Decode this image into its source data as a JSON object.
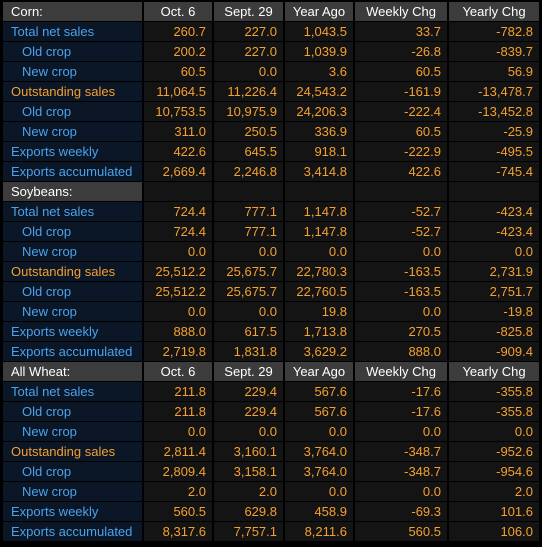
{
  "sections": [
    {
      "name": "Corn:",
      "headers": [
        "Oct. 6",
        "Sept. 29",
        "Year Ago",
        "Weekly Chg",
        "Yearly Chg"
      ],
      "rows": [
        {
          "label": "Total net sales",
          "values": [
            "260.7",
            "227.0",
            "1,043.5",
            "33.7",
            "-782.8"
          ]
        },
        {
          "label": "Old crop",
          "values": [
            "200.2",
            "227.0",
            "1,039.9",
            "-26.8",
            "-839.7"
          ]
        },
        {
          "label": "New crop",
          "values": [
            "60.5",
            "0.0",
            "3.6",
            "60.5",
            "56.9"
          ]
        },
        {
          "label": "Outstanding sales",
          "values": [
            "11,064.5",
            "11,226.4",
            "24,543.2",
            "-161.9",
            "-13,478.7"
          ]
        },
        {
          "label": "Old crop",
          "values": [
            "10,753.5",
            "10,975.9",
            "24,206.3",
            "-222.4",
            "-13,452.8"
          ]
        },
        {
          "label": "New crop",
          "values": [
            "311.0",
            "250.5",
            "336.9",
            "60.5",
            "-25.9"
          ]
        },
        {
          "label": "Exports weekly",
          "values": [
            "422.6",
            "645.5",
            "918.1",
            "-222.9",
            "-495.5"
          ]
        },
        {
          "label": "Exports accumulated",
          "values": [
            "2,669.4",
            "2,246.8",
            "3,414.8",
            "422.6",
            "-745.4"
          ]
        }
      ]
    },
    {
      "name": "Soybeans:",
      "rows": [
        {
          "label": "Total net sales",
          "values": [
            "724.4",
            "777.1",
            "1,147.8",
            "-52.7",
            "-423.4"
          ]
        },
        {
          "label": "Old crop",
          "values": [
            "724.4",
            "777.1",
            "1,147.8",
            "-52.7",
            "-423.4"
          ]
        },
        {
          "label": "New crop",
          "values": [
            "0.0",
            "0.0",
            "0.0",
            "0.0",
            "0.0"
          ]
        },
        {
          "label": "Outstanding sales",
          "values": [
            "25,512.2",
            "25,675.7",
            "22,780.3",
            "-163.5",
            "2,731.9"
          ]
        },
        {
          "label": "Old crop",
          "values": [
            "25,512.2",
            "25,675.7",
            "22,760.5",
            "-163.5",
            "2,751.7"
          ]
        },
        {
          "label": "New crop",
          "values": [
            "0.0",
            "0.0",
            "19.8",
            "0.0",
            "-19.8"
          ]
        },
        {
          "label": "Exports weekly",
          "values": [
            "888.0",
            "617.5",
            "1,713.8",
            "270.5",
            "-825.8"
          ]
        },
        {
          "label": "Exports accumulated",
          "values": [
            "2,719.8",
            "1,831.8",
            "3,629.2",
            "888.0",
            "-909.4"
          ]
        }
      ]
    },
    {
      "name": "All Wheat:",
      "headers": [
        "Oct. 6",
        "Sept. 29",
        "Year Ago",
        "Weekly Chg",
        "Yearly Chg"
      ],
      "rows": [
        {
          "label": "Total net sales",
          "values": [
            "211.8",
            "229.4",
            "567.6",
            "-17.6",
            "-355.8"
          ]
        },
        {
          "label": "Old crop",
          "values": [
            "211.8",
            "229.4",
            "567.6",
            "-17.6",
            "-355.8"
          ]
        },
        {
          "label": "New crop",
          "values": [
            "0.0",
            "0.0",
            "0.0",
            "0.0",
            "0.0"
          ]
        },
        {
          "label": "Outstanding sales",
          "values": [
            "2,811.4",
            "3,160.1",
            "3,764.0",
            "-348.7",
            "-952.6"
          ]
        },
        {
          "label": "Old crop",
          "values": [
            "2,809.4",
            "3,158.1",
            "3,764.0",
            "-348.7",
            "-954.6"
          ]
        },
        {
          "label": "New crop",
          "values": [
            "2.0",
            "2.0",
            "0.0",
            "0.0",
            "2.0"
          ]
        },
        {
          "label": "Exports weekly",
          "values": [
            "560.5",
            "629.8",
            "458.9",
            "-69.3",
            "101.6"
          ]
        },
        {
          "label": "Exports accumulated",
          "values": [
            "8,317.6",
            "7,757.1",
            "8,211.6",
            "560.5",
            "106.0"
          ]
        }
      ]
    }
  ]
}
